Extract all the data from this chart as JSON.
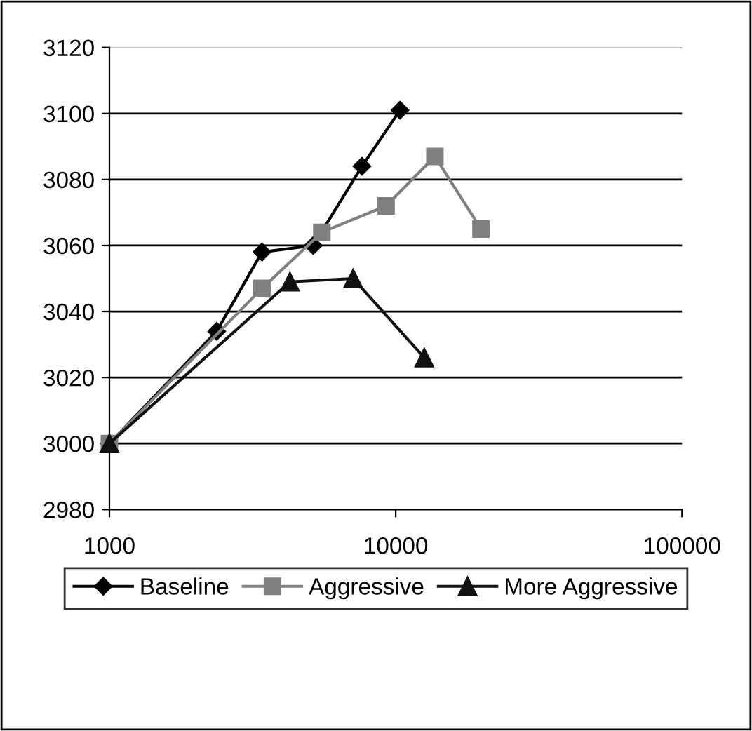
{
  "chart_data": {
    "type": "line",
    "log": "x",
    "xlim": [
      1000,
      100000
    ],
    "xticks": [
      1000,
      10000,
      100000
    ],
    "ylim": [
      2980,
      3120
    ],
    "yticks": [
      2980,
      3000,
      3020,
      3040,
      3060,
      3080,
      3100,
      3120
    ],
    "grid": "y",
    "legend": "bottom",
    "series": [
      {
        "name": "Baseline",
        "color": "#000000",
        "marker": "diamond",
        "x": [
          1000,
          2370,
          3410,
          5150,
          7620,
          10350
        ],
        "values": [
          3000,
          3034,
          3058,
          3060,
          3084,
          3101
        ]
      },
      {
        "name": "Aggressive",
        "color": "#808080",
        "marker": "square",
        "x": [
          1000,
          3410,
          5520,
          9250,
          13700,
          19850
        ],
        "values": [
          3000,
          3047,
          3064,
          3072,
          3087,
          3065
        ]
      },
      {
        "name": "More Aggressive",
        "color": "#111111",
        "marker": "triangle",
        "x": [
          1000,
          4270,
          7100,
          12580
        ],
        "values": [
          3000,
          3049,
          3050,
          3026
        ]
      }
    ]
  }
}
